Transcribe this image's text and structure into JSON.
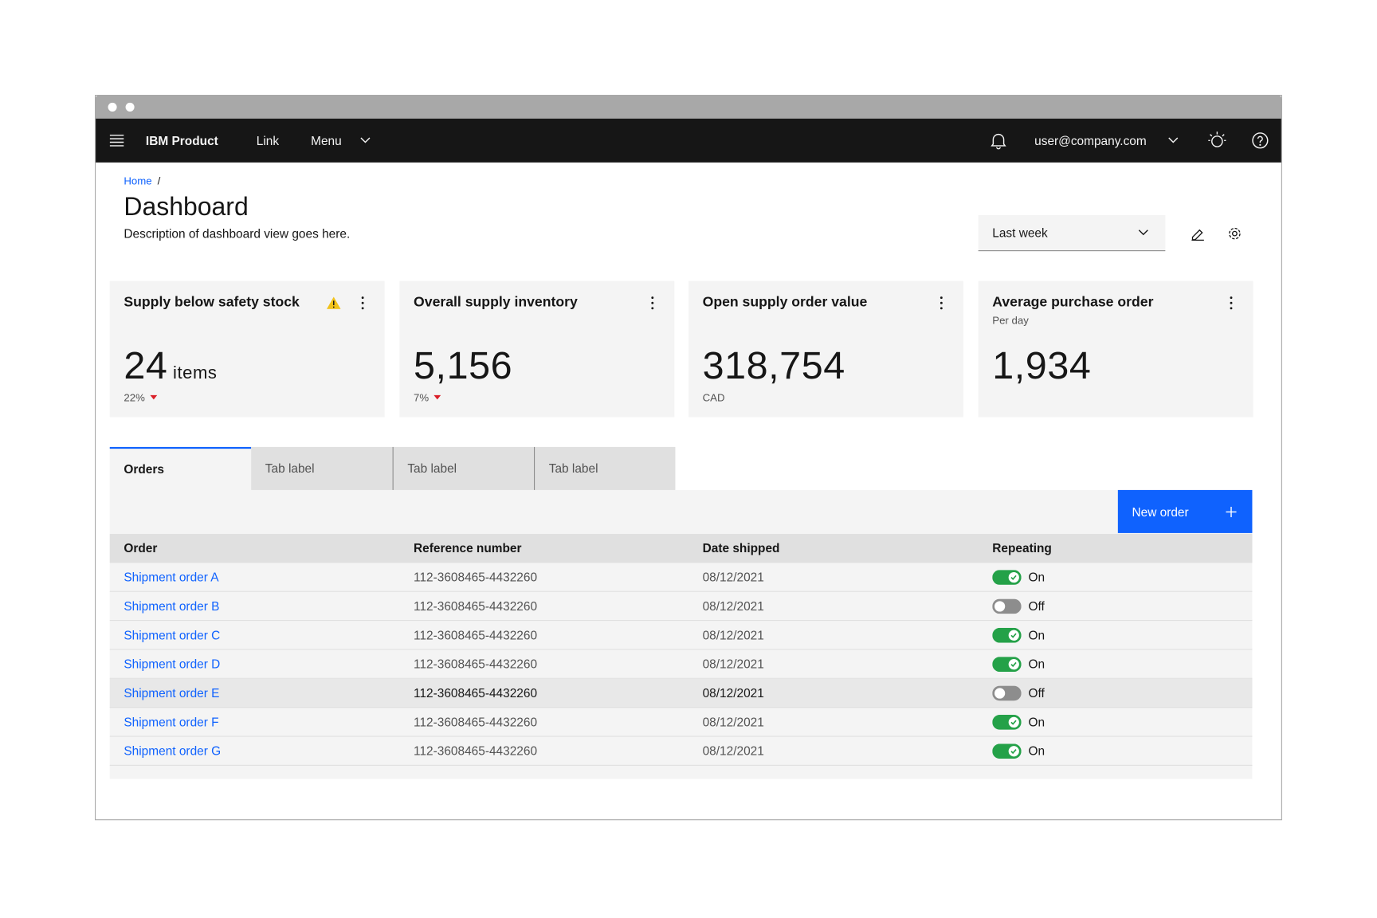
{
  "header": {
    "product": "IBM Product",
    "link": "Link",
    "menu": "Menu",
    "user": "user@company.com"
  },
  "breadcrumb": {
    "home": "Home",
    "separator": "/"
  },
  "page": {
    "title": "Dashboard",
    "description": "Description of dashboard view goes here."
  },
  "dropdown": {
    "selected": "Last week"
  },
  "cards": [
    {
      "title": "Supply below safety stock",
      "value": "24",
      "unit": "items",
      "delta": "22%"
    },
    {
      "title": "Overall supply inventory",
      "value": "5,156",
      "delta": "7%"
    },
    {
      "title": "Open supply order value",
      "value": "318,754",
      "note": "CAD"
    },
    {
      "title": "Average purchase order",
      "subtitle": "Per day",
      "value": "1,934"
    }
  ],
  "tabs": [
    "Orders",
    "Tab label",
    "Tab label",
    "Tab label"
  ],
  "button": {
    "label": "New order"
  },
  "table": {
    "headers": [
      "Order",
      "Reference number",
      "Date shipped",
      "Repeating"
    ],
    "rows": [
      [
        "Shipment order A",
        "112-3608465-4432260",
        "08/12/2021",
        "On"
      ],
      [
        "Shipment order B",
        "112-3608465-4432260",
        "08/12/2021",
        "Off"
      ],
      [
        "Shipment order C",
        "112-3608465-4432260",
        "08/12/2021",
        "On"
      ],
      [
        "Shipment order D",
        "112-3608465-4432260",
        "08/12/2021",
        "On"
      ],
      [
        "Shipment order E",
        "112-3608465-4432260",
        "08/12/2021",
        "Off"
      ],
      [
        "Shipment order F",
        "112-3608465-4432260",
        "08/12/2021",
        "On"
      ],
      [
        "Shipment order G",
        "112-3608465-4432260",
        "08/12/2021",
        "On"
      ]
    ]
  }
}
